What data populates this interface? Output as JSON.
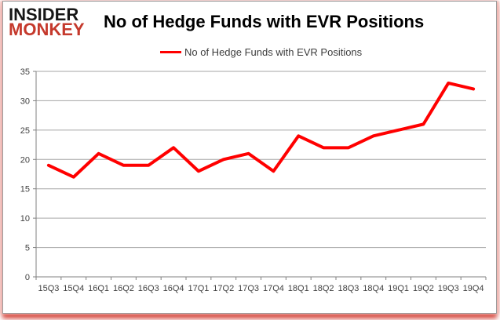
{
  "logo": {
    "line1": "INSIDER",
    "line2": "MONKEY"
  },
  "header": {
    "title": "No of Hedge Funds with EVR Positions"
  },
  "legend": {
    "label": "No of Hedge Funds with EVR Positions"
  },
  "colors": {
    "line": "#ff0000",
    "logo_black": "#161616",
    "logo_red": "#c5392c",
    "grid": "#a6a6a6",
    "axis": "#808080",
    "axis_label": "#3f3f3f",
    "frame_glow": "#e8564a"
  },
  "chart_data": {
    "type": "line",
    "title": "No of Hedge Funds with EVR Positions",
    "categories": [
      "15Q3",
      "15Q4",
      "16Q1",
      "16Q2",
      "16Q3",
      "16Q4",
      "17Q1",
      "17Q2",
      "17Q3",
      "17Q4",
      "18Q1",
      "18Q2",
      "18Q3",
      "18Q4",
      "19Q1",
      "19Q2",
      "19Q3",
      "19Q4"
    ],
    "series": [
      {
        "name": "No of Hedge Funds with EVR Positions",
        "color": "#ff0000",
        "values": [
          19,
          17,
          21,
          19,
          19,
          22,
          18,
          20,
          21,
          18,
          24,
          22,
          22,
          24,
          25,
          26,
          33,
          32
        ]
      }
    ],
    "xlabel": "",
    "ylabel": "",
    "ylim": [
      0,
      35
    ],
    "yticks": [
      0,
      5,
      10,
      15,
      20,
      25,
      30,
      35
    ],
    "grid": true,
    "legend_position": "top"
  }
}
